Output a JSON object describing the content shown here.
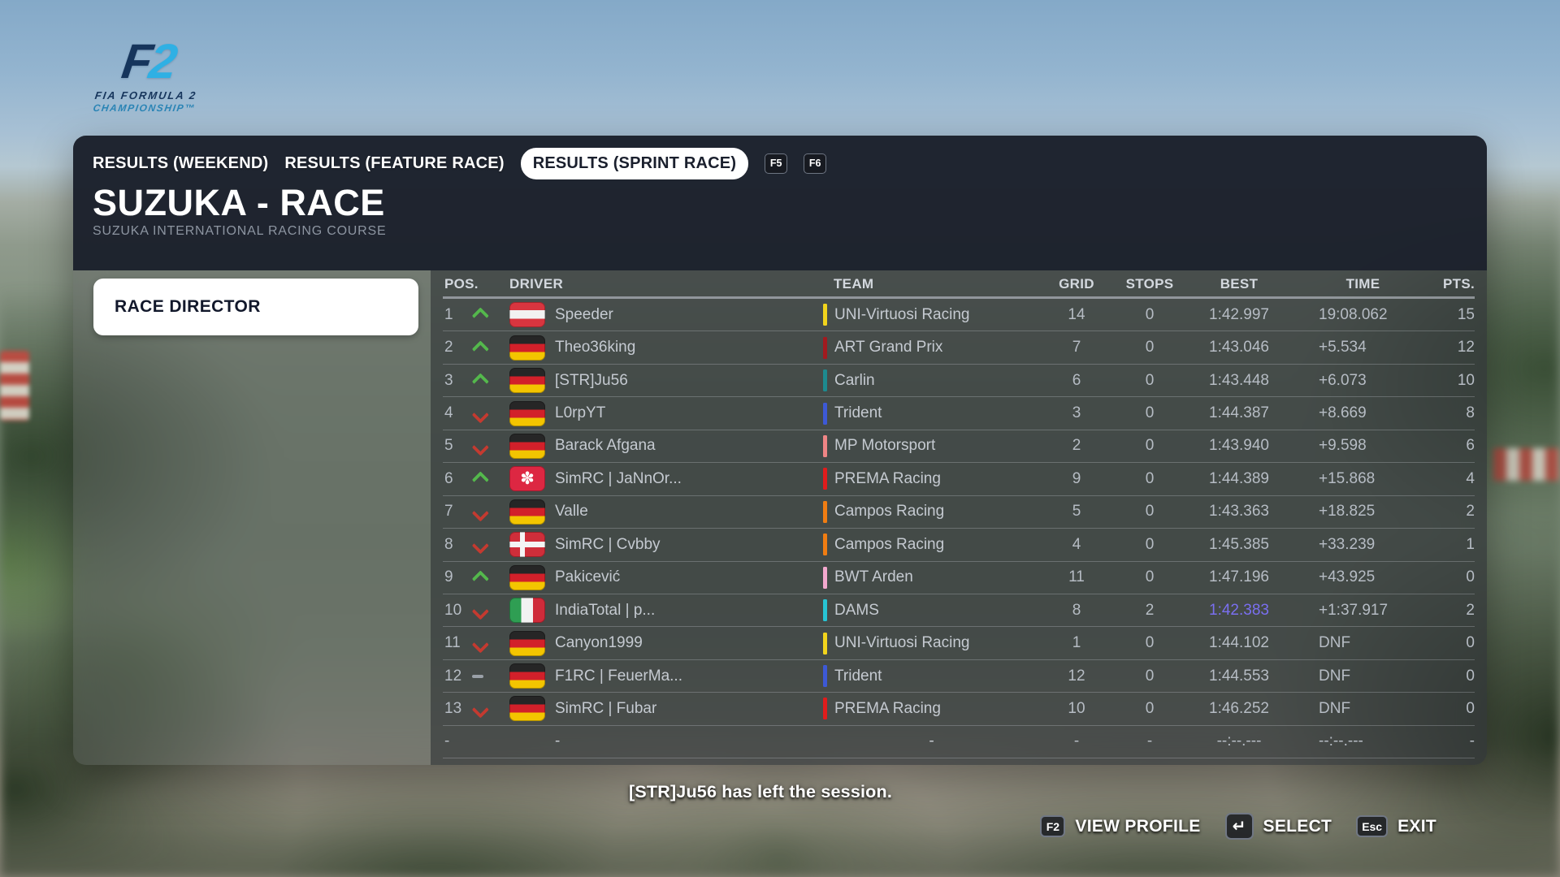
{
  "logo": {
    "f": "F",
    "two": "2",
    "subtitle_line1": "FIA FORMULA 2",
    "subtitle_line2": "CHAMPIONSHIP™"
  },
  "tabs": {
    "items": [
      {
        "label": "RESULTS (WEEKEND)",
        "active": false
      },
      {
        "label": "RESULTS (FEATURE RACE)",
        "active": false
      },
      {
        "label": "RESULTS (SPRINT RACE)",
        "active": true
      }
    ],
    "key_hints": [
      "F5",
      "F6"
    ]
  },
  "header": {
    "title": "SUZUKA - RACE",
    "subtitle": "SUZUKA INTERNATIONAL RACING COURSE"
  },
  "sidebar": {
    "button_label": "RACE DIRECTOR"
  },
  "results_table": {
    "columns": [
      "POS.",
      "DRIVER",
      "TEAM",
      "GRID",
      "STOPS",
      "BEST",
      "TIME",
      "PTS."
    ],
    "fastest_lap_color": "#7a6ff0",
    "rows": [
      {
        "pos": "1",
        "trend": "up",
        "flag": "austria",
        "driver": "Speeder",
        "team": "UNI-Virtuosi Racing",
        "team_color": "#f2d41c",
        "grid": "14",
        "stops": "0",
        "best": "1:42.997",
        "fastest": false,
        "time": "19:08.062",
        "pts": "15"
      },
      {
        "pos": "2",
        "trend": "up",
        "flag": "germany",
        "driver": "Theo36king",
        "team": "ART Grand Prix",
        "team_color": "#a11a1f",
        "grid": "7",
        "stops": "0",
        "best": "1:43.046",
        "fastest": false,
        "time": "+5.534",
        "pts": "12"
      },
      {
        "pos": "3",
        "trend": "up",
        "flag": "germany",
        "driver": "[STR]Ju56",
        "team": "Carlin",
        "team_color": "#1d8a8f",
        "grid": "6",
        "stops": "0",
        "best": "1:43.448",
        "fastest": false,
        "time": "+6.073",
        "pts": "10"
      },
      {
        "pos": "4",
        "trend": "down",
        "flag": "germany",
        "driver": "L0rpYT",
        "team": "Trident",
        "team_color": "#3d59d6",
        "grid": "3",
        "stops": "0",
        "best": "1:44.387",
        "fastest": false,
        "time": "+8.669",
        "pts": "8"
      },
      {
        "pos": "5",
        "trend": "down",
        "flag": "germany",
        "driver": "Barack Afgana",
        "team": "MP Motorsport",
        "team_color": "#ef8585",
        "grid": "2",
        "stops": "0",
        "best": "1:43.940",
        "fastest": false,
        "time": "+9.598",
        "pts": "6"
      },
      {
        "pos": "6",
        "trend": "up",
        "flag": "hongkong",
        "driver": "SimRC | JaNnOr...",
        "team": "PREMA Racing",
        "team_color": "#e01c1c",
        "grid": "9",
        "stops": "0",
        "best": "1:44.389",
        "fastest": false,
        "time": "+15.868",
        "pts": "4"
      },
      {
        "pos": "7",
        "trend": "down",
        "flag": "germany",
        "driver": "Valle",
        "team": "Campos Racing",
        "team_color": "#f07d12",
        "grid": "5",
        "stops": "0",
        "best": "1:43.363",
        "fastest": false,
        "time": "+18.825",
        "pts": "2"
      },
      {
        "pos": "8",
        "trend": "down",
        "flag": "denmark",
        "driver": "SimRC | Cvbby",
        "team": "Campos Racing",
        "team_color": "#f07d12",
        "grid": "4",
        "stops": "0",
        "best": "1:45.385",
        "fastest": false,
        "time": "+33.239",
        "pts": "1"
      },
      {
        "pos": "9",
        "trend": "up",
        "flag": "germany",
        "driver": "Pakicević",
        "team": "BWT Arden",
        "team_color": "#f3a8ce",
        "grid": "11",
        "stops": "0",
        "best": "1:47.196",
        "fastest": false,
        "time": "+43.925",
        "pts": "0"
      },
      {
        "pos": "10",
        "trend": "down",
        "flag": "italy",
        "driver": "IndiaTotal | p...",
        "team": "DAMS",
        "team_color": "#27c4d4",
        "grid": "8",
        "stops": "2",
        "best": "1:42.383",
        "fastest": true,
        "time": "+1:37.917",
        "pts": "2"
      },
      {
        "pos": "11",
        "trend": "down",
        "flag": "germany",
        "driver": "Canyon1999",
        "team": "UNI-Virtuosi Racing",
        "team_color": "#f2d41c",
        "grid": "1",
        "stops": "0",
        "best": "1:44.102",
        "fastest": false,
        "time": "DNF",
        "pts": "0"
      },
      {
        "pos": "12",
        "trend": "same",
        "flag": "germany",
        "driver": "F1RC | FeuerMa...",
        "team": "Trident",
        "team_color": "#3d59d6",
        "grid": "12",
        "stops": "0",
        "best": "1:44.553",
        "fastest": false,
        "time": "DNF",
        "pts": "0"
      },
      {
        "pos": "13",
        "trend": "down",
        "flag": "germany",
        "driver": "SimRC | Fubar",
        "team": "PREMA Racing",
        "team_color": "#e01c1c",
        "grid": "10",
        "stops": "0",
        "best": "1:46.252",
        "fastest": false,
        "time": "DNF",
        "pts": "0"
      },
      {
        "pos": "-",
        "trend": "none",
        "flag": null,
        "driver": "-",
        "team": "-",
        "team_color": null,
        "grid": "-",
        "stops": "-",
        "best": "--:--.---",
        "fastest": false,
        "time": "--:--.---",
        "pts": "-"
      }
    ]
  },
  "footer": {
    "session_message": "[STR]Ju56 has left the session.",
    "actions": [
      {
        "key": "F2",
        "label": "VIEW PROFILE"
      },
      {
        "key": "↵",
        "label": "SELECT"
      },
      {
        "key": "Esc",
        "label": "EXIT"
      }
    ]
  }
}
